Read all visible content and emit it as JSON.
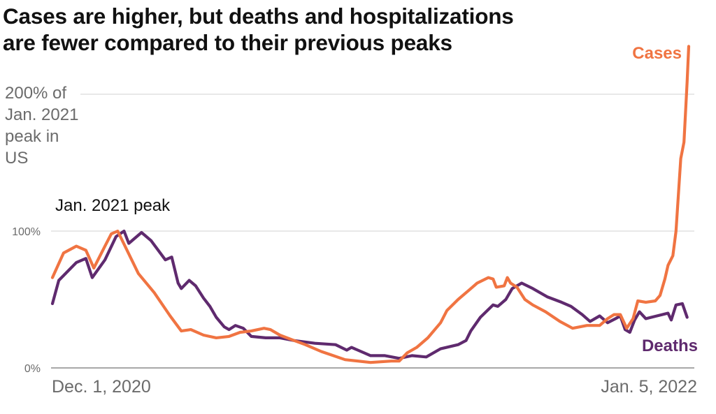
{
  "title": {
    "line1": "Cases are higher, but deaths and hospitalizations",
    "line2": "are fewer compared to their previous peaks"
  },
  "colors": {
    "cases": "#f07442",
    "deaths": "#5f2a6e",
    "grid": "#d9d9d9",
    "axis": "#8c8c8c"
  },
  "chart_data": {
    "type": "line",
    "title": "Cases are higher, but deaths and hospitalizations are fewer compared to their previous peaks",
    "xlabel": "",
    "ylabel": "200% of Jan. 2021 peak in US",
    "x_unit": "days since Dec. 1, 2020",
    "xlim": [
      0,
      400
    ],
    "ylim": [
      0,
      240
    ],
    "y_ticks": [
      {
        "value": 0,
        "label": "0%"
      },
      {
        "value": 100,
        "label": "100%"
      },
      {
        "value": 200,
        "label": "200% of"
      }
    ],
    "y_axis_title_lines": [
      "200% of",
      "Jan. 2021",
      "peak in",
      "US"
    ],
    "x_ticks": [
      {
        "value": 0,
        "label": "Dec. 1, 2020",
        "anchor": "start"
      },
      {
        "value": 400,
        "label": "Jan. 5, 2022",
        "anchor": "end"
      }
    ],
    "grid": true,
    "annotations": [
      {
        "text": "Jan. 2021 peak",
        "y": 100
      }
    ],
    "series": [
      {
        "name": "Cases",
        "label": "Cases",
        "x": [
          0,
          7,
          15,
          21,
          26,
          33,
          37,
          41,
          54,
          64,
          74,
          81,
          87,
          95,
          103,
          111,
          118,
          125,
          133,
          137,
          143,
          152,
          159,
          169,
          174,
          184,
          200,
          213,
          218,
          223,
          229,
          236,
          244,
          248,
          255,
          262,
          267,
          274,
          277,
          279,
          284,
          286,
          288,
          292,
          297,
          302,
          310,
          319,
          327,
          336,
          344,
          349,
          353,
          357,
          361,
          365,
          368,
          373,
          379,
          382,
          385,
          387,
          390,
          392,
          395,
          397,
          399,
          400
        ],
        "values": [
          66,
          84,
          89,
          86,
          73,
          89,
          98,
          100,
          69,
          55,
          38,
          27,
          28,
          24,
          22,
          23,
          26,
          27,
          29,
          28,
          24,
          20,
          17,
          12,
          10,
          6,
          4,
          5,
          5,
          11,
          15,
          22,
          33,
          42,
          50,
          57,
          62,
          66,
          65,
          59,
          60,
          66,
          62,
          59,
          50,
          46,
          41,
          34,
          29,
          31,
          31,
          36,
          39,
          39,
          29,
          36,
          49,
          48,
          49,
          53,
          65,
          75,
          82,
          100,
          153,
          165,
          209,
          235
        ]
      },
      {
        "name": "Deaths",
        "label": "Deaths",
        "x": [
          0,
          4,
          15,
          21,
          25,
          33,
          40,
          45,
          48,
          56,
          62,
          71,
          75,
          79,
          81,
          86,
          90,
          95,
          99,
          103,
          108,
          111,
          115,
          120,
          125,
          134,
          143,
          152,
          165,
          178,
          185,
          188,
          200,
          209,
          218,
          226,
          235,
          244,
          255,
          260,
          263,
          269,
          277,
          280,
          285,
          289,
          295,
          302,
          311,
          320,
          326,
          333,
          338,
          344,
          349,
          354,
          357,
          360,
          363,
          366,
          369,
          373,
          380,
          387,
          389,
          392,
          396,
          399
        ],
        "values": [
          47,
          64,
          77,
          80,
          66,
          79,
          96,
          100,
          91,
          99,
          93,
          79,
          81,
          62,
          58,
          64,
          60,
          51,
          45,
          37,
          30,
          28,
          31,
          29,
          23,
          22,
          22,
          20,
          18,
          17,
          13,
          15,
          9,
          9,
          7,
          9,
          8,
          14,
          17,
          20,
          27,
          37,
          46,
          45,
          50,
          58,
          62,
          58,
          52,
          48,
          45,
          39,
          34,
          38,
          33,
          36,
          38,
          28,
          26,
          35,
          41,
          36,
          38,
          40,
          35,
          46,
          47,
          37
        ]
      }
    ]
  }
}
